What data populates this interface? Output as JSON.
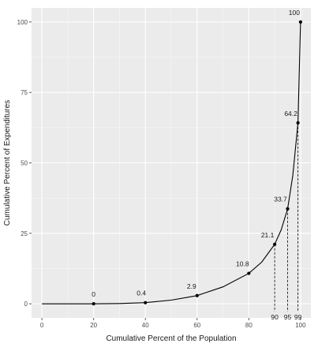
{
  "chart_data": {
    "type": "line",
    "xlabel": "Cumulative Percent of the Population",
    "ylabel": "Cumulative Percent of Expenditures",
    "xlim": [
      -4,
      104
    ],
    "ylim": [
      -5,
      105
    ],
    "x_ticks": [
      0,
      20,
      40,
      60,
      80,
      100
    ],
    "y_ticks": [
      0,
      25,
      50,
      75,
      100
    ],
    "grid": true,
    "background_color": "#ebebeb",
    "grid_major_color": "#ffffff",
    "line_color": "#000000",
    "curve": [
      {
        "x": 0,
        "y": 0
      },
      {
        "x": 10,
        "y": 0
      },
      {
        "x": 20,
        "y": 0
      },
      {
        "x": 30,
        "y": 0.1
      },
      {
        "x": 40,
        "y": 0.4
      },
      {
        "x": 50,
        "y": 1.3
      },
      {
        "x": 60,
        "y": 2.9
      },
      {
        "x": 70,
        "y": 6.0
      },
      {
        "x": 80,
        "y": 10.8
      },
      {
        "x": 85,
        "y": 14.8
      },
      {
        "x": 90,
        "y": 21.1
      },
      {
        "x": 92.5,
        "y": 26.2
      },
      {
        "x": 95,
        "y": 33.7
      },
      {
        "x": 97,
        "y": 45.5
      },
      {
        "x": 99,
        "y": 64.2
      },
      {
        "x": 100,
        "y": 100
      }
    ],
    "labeled_points": [
      {
        "x": 20,
        "y": 0,
        "label": "0"
      },
      {
        "x": 40,
        "y": 0.4,
        "label": "0.4"
      },
      {
        "x": 60,
        "y": 2.9,
        "label": "2.9"
      },
      {
        "x": 80,
        "y": 10.8,
        "label": "10.8"
      },
      {
        "x": 90,
        "y": 21.1,
        "label": "21.1"
      },
      {
        "x": 95,
        "y": 33.7,
        "label": "33.7"
      },
      {
        "x": 99,
        "y": 64.2,
        "label": "64.2"
      },
      {
        "x": 100,
        "y": 100,
        "label": "100"
      }
    ],
    "dropline_x_values": [
      90,
      95,
      99
    ],
    "dropline_labels": [
      "90",
      "95",
      "99"
    ]
  }
}
